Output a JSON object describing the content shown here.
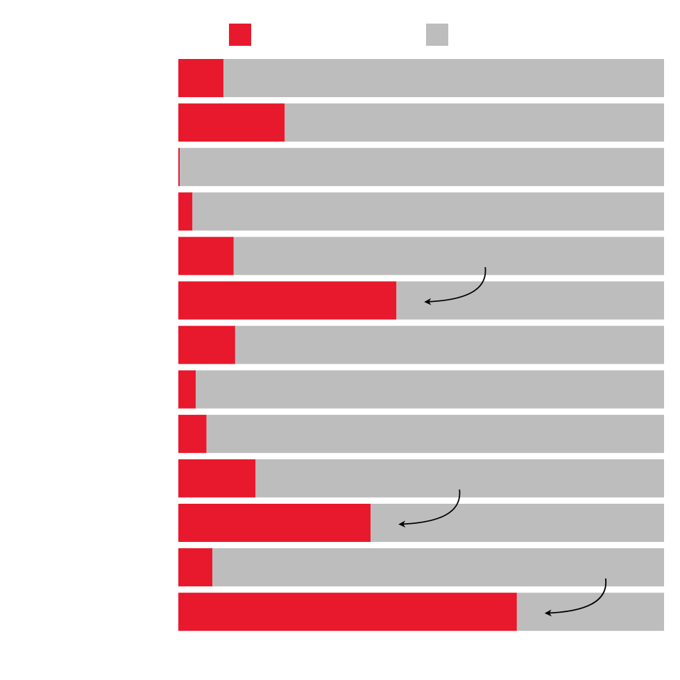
{
  "chart_data": {
    "type": "bar",
    "orientation": "horizontal",
    "stacked": true,
    "normalized_to": 100,
    "xlim": [
      0,
      100
    ],
    "grid": false,
    "legend_position": "top",
    "series": [
      {
        "color": "#e8192c",
        "values": [
          9.3,
          21.9,
          0.3,
          2.9,
          11.4,
          44.9,
          11.7,
          3.6,
          5.8,
          15.9,
          39.6,
          7.0,
          69.7
        ]
      },
      {
        "color": "#bdbdbd",
        "values": [
          90.7,
          78.1,
          99.7,
          97.1,
          88.6,
          55.1,
          88.3,
          96.4,
          94.2,
          84.1,
          60.4,
          93.0,
          30.3
        ]
      }
    ],
    "annotations": [
      {
        "type": "arrow",
        "row": 5
      },
      {
        "type": "arrow",
        "row": 10
      },
      {
        "type": "arrow",
        "row": 12
      }
    ]
  }
}
